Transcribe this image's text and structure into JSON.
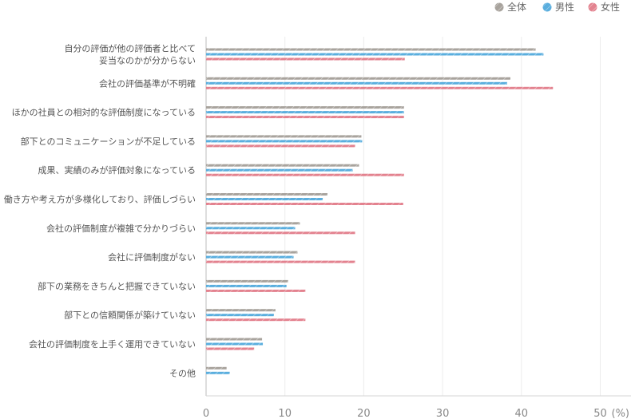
{
  "chart_data": {
    "type": "bar",
    "orientation": "horizontal",
    "unit_label": "(%)",
    "xlim": [
      0,
      50
    ],
    "ticks": [
      0,
      10,
      20,
      30,
      40,
      50
    ],
    "legend_position": "top-right",
    "categories": [
      [
        "自分の評価が他の評価者と比べて",
        "妥当なのかが分からない"
      ],
      [
        "会社の評価基準が不明確"
      ],
      [
        "ほかの社員との相対的な評価制度になっている"
      ],
      [
        "部下とのコミュニケーションが不足している"
      ],
      [
        "成果、実績のみが評価対象になっている"
      ],
      [
        "働き方や考え方が多様化しており、評価しづらい"
      ],
      [
        "会社の評価制度が複雑で分かりづらい"
      ],
      [
        "会社に評価制度がない"
      ],
      [
        "部下の業務をきちんと把握できていない"
      ],
      [
        "部下との信頼関係が築けていない"
      ],
      [
        "会社の評価制度を上手く運用できていない"
      ],
      [
        "その他"
      ]
    ],
    "series": [
      {
        "name": "全体",
        "color": "#a8a39d",
        "values": [
          41.8,
          38.6,
          25.1,
          19.7,
          19.4,
          15.4,
          11.9,
          11.6,
          10.4,
          8.8,
          7.1,
          2.6
        ]
      },
      {
        "name": "男性",
        "color": "#5aaede",
        "values": [
          42.8,
          38.2,
          25.1,
          19.8,
          18.6,
          14.8,
          11.3,
          11.1,
          10.2,
          8.6,
          7.2,
          3.0
        ]
      },
      {
        "name": "女性",
        "color": "#e3828f",
        "values": [
          25.2,
          44.0,
          25.1,
          18.9,
          25.1,
          25.0,
          18.9,
          18.9,
          12.6,
          12.6,
          6.1,
          null
        ]
      }
    ]
  }
}
